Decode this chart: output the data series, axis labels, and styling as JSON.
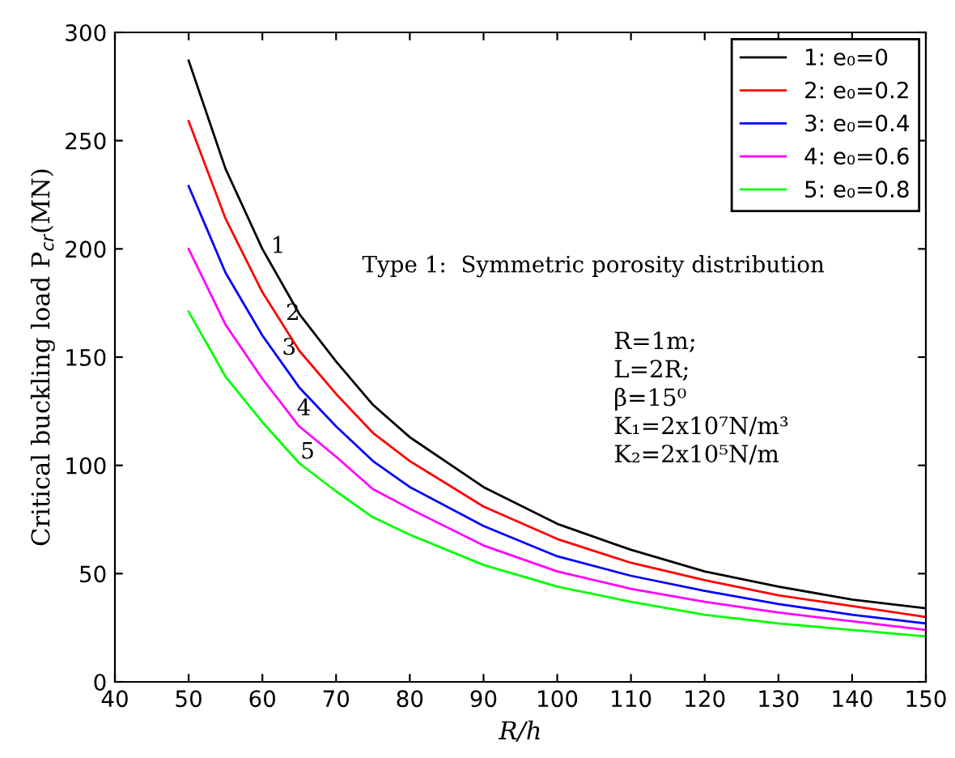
{
  "chart_data": {
    "type": "line",
    "xlabel": "R/h",
    "ylabel": "Critical buckling load P$_{cr}$(MN)",
    "x": [
      50,
      55,
      60,
      65,
      70,
      75,
      80,
      90,
      100,
      110,
      120,
      130,
      140,
      150
    ],
    "series": [
      {
        "name": "1: e₀=0",
        "color": "#000000",
        "values": [
          287,
          237,
          200,
          170,
          148,
          128,
          113,
          90,
          73,
          61,
          51,
          44,
          38,
          34
        ]
      },
      {
        "name": "2: e₀=0.2",
        "color": "#ff0000",
        "values": [
          259,
          214,
          180,
          153,
          133,
          115,
          102,
          81,
          66,
          55,
          47,
          40,
          35,
          30
        ]
      },
      {
        "name": "3: e₀=0.4",
        "color": "#0000ff",
        "values": [
          229,
          189,
          160,
          136,
          118,
          102,
          90,
          72,
          58,
          49,
          42,
          36,
          31,
          27
        ]
      },
      {
        "name": "4: e₀=0.6",
        "color": "#ff00ff",
        "values": [
          200,
          165,
          140,
          118,
          104,
          89,
          80,
          63,
          51,
          43,
          37,
          32,
          28,
          24
        ]
      },
      {
        "name": "5: e₀=0.8",
        "color": "#00ff00",
        "values": [
          171,
          141,
          120,
          101,
          88,
          76,
          68,
          54,
          44,
          37,
          31,
          27,
          24,
          21
        ]
      }
    ],
    "annotations": [
      {
        "text": "1",
        "x": 60,
        "y": 200
      },
      {
        "text": "2",
        "x": 62,
        "y": 169
      },
      {
        "text": "3",
        "x": 61.5,
        "y": 153
      },
      {
        "text": "4",
        "x": 63.5,
        "y": 125
      },
      {
        "text": "5",
        "x": 64,
        "y": 105
      },
      "Type 1:  Symmetric porosity distribution",
      "R=1m;\nL=2R;\nβ=15⁰\nK₁=2x10⁷N/m³\nK₂=2x10⁵N/m"
    ],
    "xlim": [
      40,
      150
    ],
    "xticks": [
      40,
      50,
      60,
      70,
      80,
      90,
      100,
      110,
      120,
      130,
      140,
      150
    ],
    "ylim": [
      0,
      300
    ],
    "yticks": [
      0,
      50,
      100,
      150,
      200,
      250,
      300
    ],
    "legend": "top right",
    "grid": false,
    "marker": "none",
    "line_style": "solid"
  }
}
